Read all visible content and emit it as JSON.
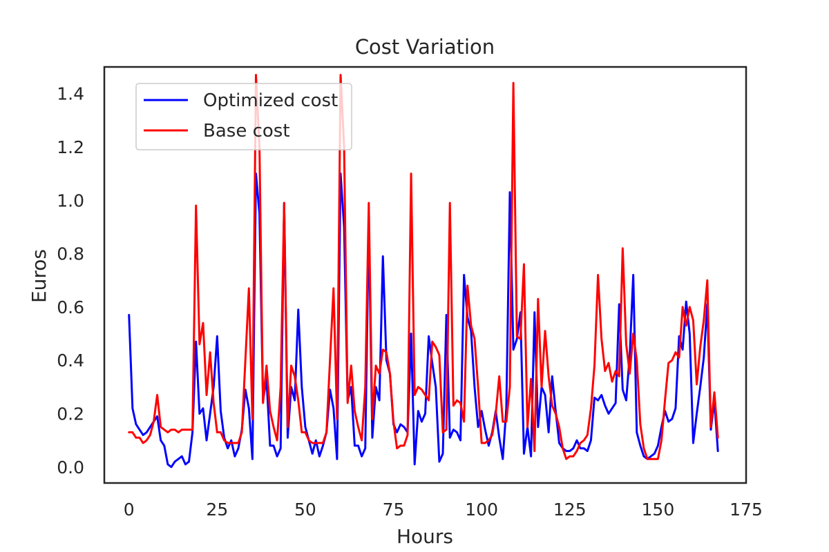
{
  "chart_data": {
    "type": "line",
    "title": "Cost Variation",
    "xlabel": "Hours",
    "ylabel": "Euros",
    "xlim": [
      -7,
      175
    ],
    "ylim": [
      -0.06,
      1.5
    ],
    "xticks": [
      0,
      25,
      50,
      75,
      100,
      125,
      150,
      175
    ],
    "yticks": [
      0.0,
      0.2,
      0.4,
      0.6,
      0.8,
      1.0,
      1.2,
      1.4
    ],
    "ytick_labels": [
      "0.0",
      "0.2",
      "0.4",
      "0.6",
      "0.8",
      "1.0",
      "1.2",
      "1.4"
    ],
    "grid": false,
    "legend": "top-left",
    "series": [
      {
        "name": "Optimized cost",
        "color": "#0000ff",
        "x": [
          0,
          1,
          2,
          3,
          4,
          5,
          6,
          7,
          8,
          9,
          10,
          11,
          12,
          13,
          14,
          15,
          16,
          17,
          18,
          19,
          20,
          21,
          22,
          23,
          24,
          25,
          26,
          27,
          28,
          29,
          30,
          31,
          32,
          33,
          34,
          35,
          36,
          37,
          38,
          39,
          40,
          41,
          42,
          43,
          44,
          45,
          46,
          47,
          48,
          49,
          50,
          51,
          52,
          53,
          54,
          55,
          56,
          57,
          58,
          59,
          60,
          61,
          62,
          63,
          64,
          65,
          66,
          67,
          68,
          69,
          70,
          71,
          72,
          73,
          74,
          75,
          76,
          77,
          78,
          79,
          80,
          81,
          82,
          83,
          84,
          85,
          86,
          87,
          88,
          89,
          90,
          91,
          92,
          93,
          94,
          95,
          96,
          97,
          98,
          99,
          100,
          101,
          102,
          103,
          104,
          105,
          106,
          107,
          108,
          109,
          110,
          111,
          112,
          113,
          114,
          115,
          116,
          117,
          118,
          119,
          120,
          121,
          122,
          123,
          124,
          125,
          126,
          127,
          128,
          129,
          130,
          131,
          132,
          133,
          134,
          135,
          136,
          137,
          138,
          139,
          140,
          141,
          142,
          143,
          144,
          145,
          146,
          147,
          148,
          149,
          150,
          151,
          152,
          153,
          154,
          155,
          156,
          157,
          158,
          159,
          160,
          161,
          162,
          163,
          164,
          165,
          166,
          167
        ],
        "values": [
          0.57,
          0.22,
          0.16,
          0.14,
          0.12,
          0.13,
          0.15,
          0.17,
          0.19,
          0.1,
          0.08,
          0.01,
          0.0,
          0.02,
          0.03,
          0.04,
          0.01,
          0.02,
          0.13,
          0.47,
          0.2,
          0.22,
          0.1,
          0.2,
          0.3,
          0.49,
          0.21,
          0.11,
          0.07,
          0.1,
          0.04,
          0.07,
          0.14,
          0.29,
          0.22,
          0.03,
          1.1,
          0.95,
          0.25,
          0.33,
          0.08,
          0.08,
          0.04,
          0.07,
          0.99,
          0.11,
          0.3,
          0.25,
          0.59,
          0.3,
          0.15,
          0.1,
          0.05,
          0.1,
          0.04,
          0.08,
          0.13,
          0.29,
          0.22,
          0.03,
          1.1,
          0.9,
          0.25,
          0.3,
          0.08,
          0.08,
          0.04,
          0.07,
          0.92,
          0.11,
          0.3,
          0.25,
          0.79,
          0.4,
          0.35,
          0.16,
          0.13,
          0.16,
          0.15,
          0.13,
          0.5,
          0.01,
          0.21,
          0.17,
          0.2,
          0.49,
          0.39,
          0.3,
          0.02,
          0.05,
          0.57,
          0.11,
          0.14,
          0.13,
          0.1,
          0.72,
          0.56,
          0.51,
          0.3,
          0.15,
          0.21,
          0.14,
          0.08,
          0.13,
          0.21,
          0.11,
          0.03,
          0.22,
          1.03,
          0.44,
          0.48,
          0.58,
          0.05,
          0.15,
          0.04,
          0.58,
          0.15,
          0.3,
          0.27,
          0.13,
          0.34,
          0.21,
          0.09,
          0.07,
          0.06,
          0.06,
          0.07,
          0.1,
          0.07,
          0.07,
          0.06,
          0.1,
          0.26,
          0.25,
          0.27,
          0.23,
          0.2,
          0.22,
          0.24,
          0.61,
          0.29,
          0.25,
          0.42,
          0.72,
          0.13,
          0.08,
          0.04,
          0.03,
          0.04,
          0.05,
          0.08,
          0.15,
          0.21,
          0.17,
          0.18,
          0.22,
          0.49,
          0.44,
          0.62,
          0.5,
          0.09,
          0.2,
          0.3,
          0.41,
          0.61,
          0.14,
          0.25,
          0.06
        ]
      },
      {
        "name": "Base cost",
        "color": "#ff0000",
        "x": [
          0,
          1,
          2,
          3,
          4,
          5,
          6,
          7,
          8,
          9,
          10,
          11,
          12,
          13,
          14,
          15,
          16,
          17,
          18,
          19,
          20,
          21,
          22,
          23,
          24,
          25,
          26,
          27,
          28,
          29,
          30,
          31,
          32,
          33,
          34,
          35,
          36,
          37,
          38,
          39,
          40,
          41,
          42,
          43,
          44,
          45,
          46,
          47,
          48,
          49,
          50,
          51,
          52,
          53,
          54,
          55,
          56,
          57,
          58,
          59,
          60,
          61,
          62,
          63,
          64,
          65,
          66,
          67,
          68,
          69,
          70,
          71,
          72,
          73,
          74,
          75,
          76,
          77,
          78,
          79,
          80,
          81,
          82,
          83,
          84,
          85,
          86,
          87,
          88,
          89,
          90,
          91,
          92,
          93,
          94,
          95,
          96,
          97,
          98,
          99,
          100,
          101,
          102,
          103,
          104,
          105,
          106,
          107,
          108,
          109,
          110,
          111,
          112,
          113,
          114,
          115,
          116,
          117,
          118,
          119,
          120,
          121,
          122,
          123,
          124,
          125,
          126,
          127,
          128,
          129,
          130,
          131,
          132,
          133,
          134,
          135,
          136,
          137,
          138,
          139,
          140,
          141,
          142,
          143,
          144,
          145,
          146,
          147,
          148,
          149,
          150,
          151,
          152,
          153,
          154,
          155,
          156,
          157,
          158,
          159,
          160,
          161,
          162,
          163,
          164,
          165,
          166,
          167
        ],
        "values": [
          0.13,
          0.13,
          0.11,
          0.11,
          0.09,
          0.1,
          0.12,
          0.17,
          0.27,
          0.15,
          0.14,
          0.13,
          0.14,
          0.14,
          0.13,
          0.14,
          0.14,
          0.14,
          0.14,
          0.98,
          0.46,
          0.54,
          0.27,
          0.43,
          0.24,
          0.13,
          0.13,
          0.1,
          0.09,
          0.09,
          0.09,
          0.09,
          0.13,
          0.4,
          0.67,
          0.18,
          1.47,
          1.2,
          0.24,
          0.38,
          0.21,
          0.15,
          0.1,
          0.3,
          0.99,
          0.15,
          0.38,
          0.34,
          0.25,
          0.13,
          0.13,
          0.1,
          0.09,
          0.09,
          0.09,
          0.09,
          0.13,
          0.4,
          0.67,
          0.18,
          1.47,
          1.2,
          0.24,
          0.38,
          0.21,
          0.15,
          0.1,
          0.3,
          0.99,
          0.18,
          0.38,
          0.35,
          0.44,
          0.43,
          0.35,
          0.17,
          0.07,
          0.08,
          0.08,
          0.12,
          1.1,
          0.27,
          0.3,
          0.29,
          0.27,
          0.25,
          0.47,
          0.45,
          0.42,
          0.13,
          0.14,
          0.99,
          0.23,
          0.25,
          0.24,
          0.17,
          0.68,
          0.53,
          0.48,
          0.3,
          0.09,
          0.09,
          0.1,
          0.12,
          0.2,
          0.34,
          0.17,
          0.17,
          0.3,
          1.44,
          0.49,
          0.48,
          0.76,
          0.15,
          0.33,
          0.06,
          0.63,
          0.3,
          0.51,
          0.34,
          0.23,
          0.2,
          0.15,
          0.07,
          0.03,
          0.04,
          0.04,
          0.06,
          0.09,
          0.1,
          0.12,
          0.22,
          0.38,
          0.72,
          0.48,
          0.36,
          0.39,
          0.32,
          0.36,
          0.34,
          0.82,
          0.46,
          0.35,
          0.5,
          0.4,
          0.16,
          0.07,
          0.03,
          0.03,
          0.03,
          0.03,
          0.1,
          0.25,
          0.39,
          0.4,
          0.43,
          0.41,
          0.6,
          0.53,
          0.6,
          0.55,
          0.31,
          0.45,
          0.55,
          0.7,
          0.15,
          0.28,
          0.11
        ]
      }
    ]
  }
}
